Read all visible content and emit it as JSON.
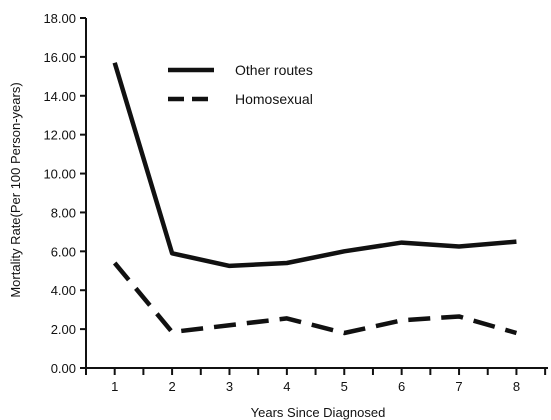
{
  "chart_data": {
    "type": "line",
    "xlabel": "Years Since Diagnosed",
    "ylabel": "Mortality Rate(Per 100 Person-years)",
    "x": [
      1,
      2,
      3,
      4,
      5,
      6,
      7,
      8
    ],
    "xlim": [
      0.5,
      8.55
    ],
    "ylim": [
      0,
      18
    ],
    "y_ticks": [
      "0.00",
      "2.00",
      "4.00",
      "6.00",
      "8.00",
      "10.00",
      "12.00",
      "14.00",
      "16.00",
      "18.00"
    ],
    "x_ticks": [
      "1",
      "2",
      "3",
      "4",
      "5",
      "6",
      "7",
      "8"
    ],
    "grid": false,
    "legend_position": "top-center",
    "series": [
      {
        "name": "Other routes",
        "style": "solid",
        "color": "#111111",
        "values": [
          15.7,
          5.9,
          5.25,
          5.4,
          6.0,
          6.45,
          6.25,
          6.5
        ]
      },
      {
        "name": "Homosexual",
        "style": "dashed",
        "color": "#111111",
        "values": [
          5.4,
          1.85,
          2.2,
          2.55,
          1.8,
          2.45,
          2.65,
          1.8
        ]
      }
    ]
  }
}
